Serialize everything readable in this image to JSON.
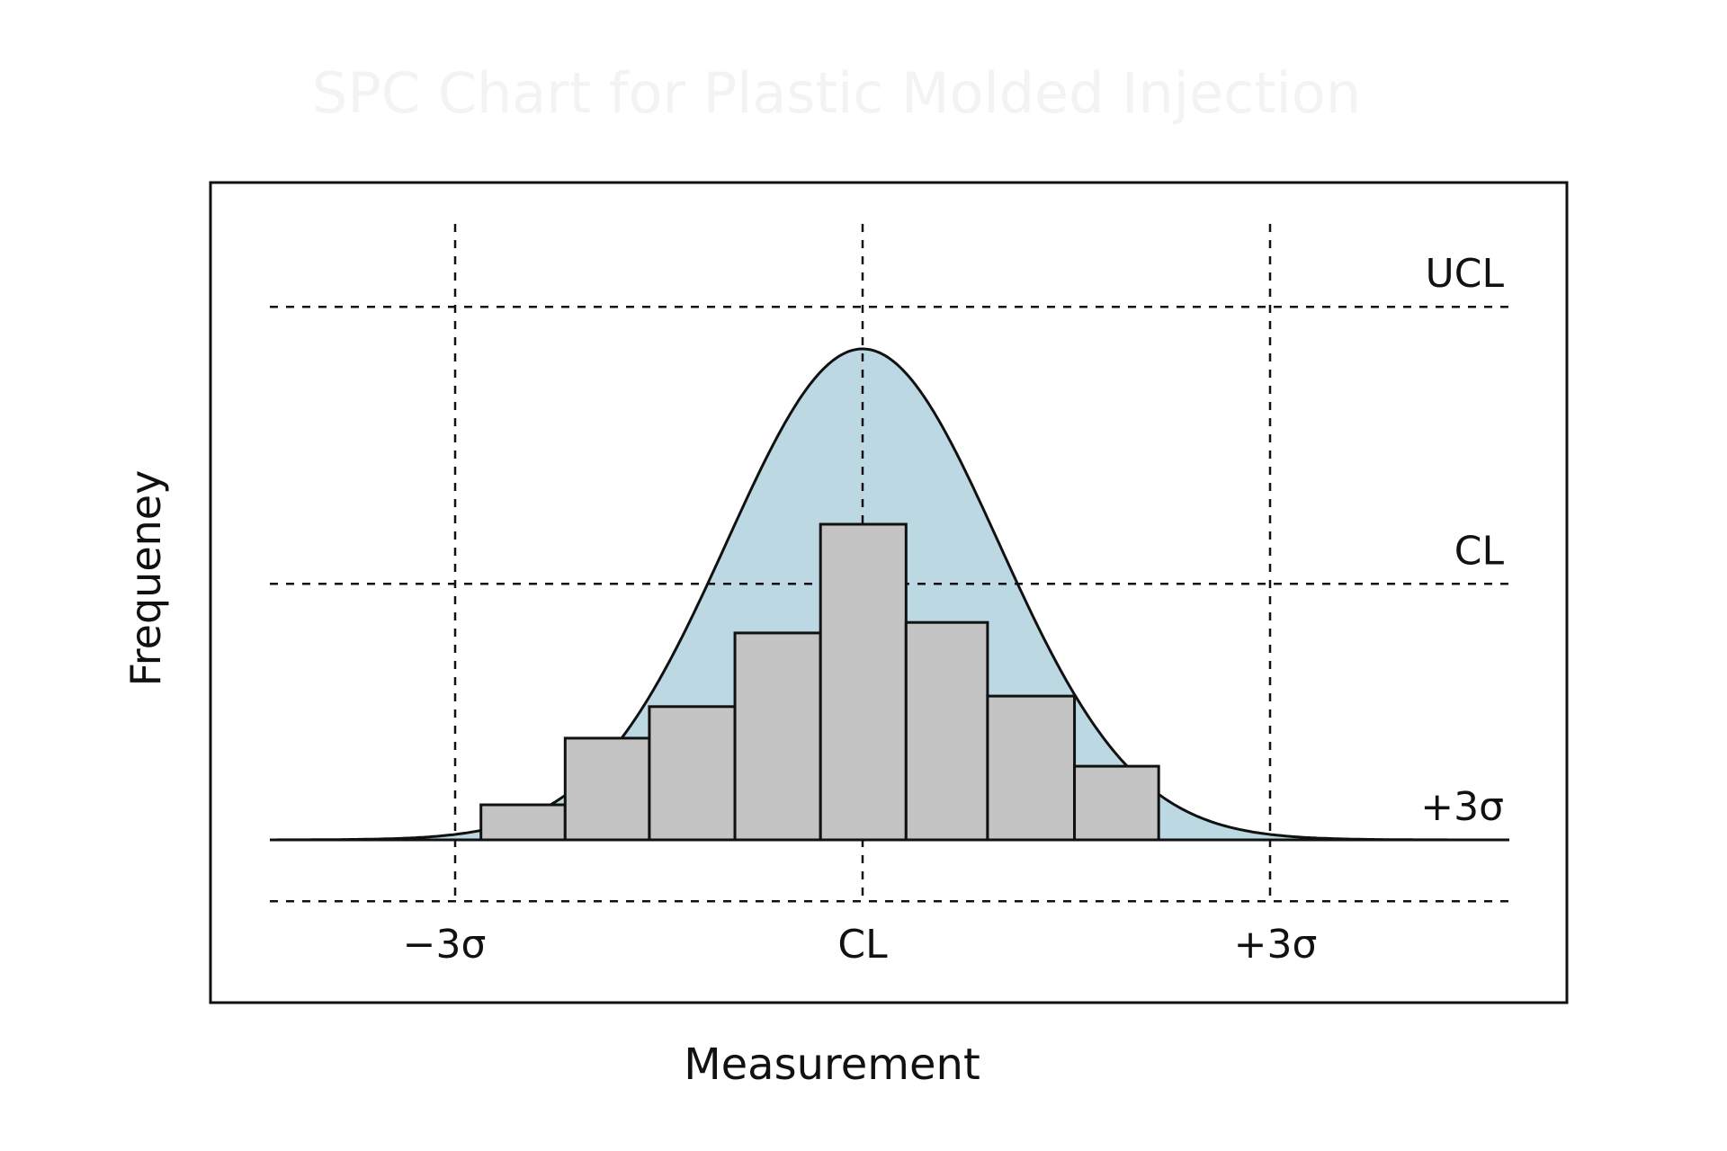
{
  "chart_data": {
    "type": "bar",
    "title": "SPC Chart for Plastic Molded Injection",
    "xlabel": "Measurement",
    "ylabel": "Frequeney",
    "x_units": "sigma",
    "xlim": [
      -4.2,
      4.8
    ],
    "ylim": [
      -1.8,
      17.5
    ],
    "x_ticks": [
      {
        "value": -3,
        "label": "−3σ"
      },
      {
        "value": 0,
        "label": "CL"
      },
      {
        "value": 3,
        "label": "+3σ"
      }
    ],
    "h_lines": [
      {
        "value": 15.2,
        "label": "UCL"
      },
      {
        "value": 7.3,
        "label": "CL"
      },
      {
        "value": 0,
        "label": "+3σ"
      },
      {
        "value": -1.75,
        "label": ""
      }
    ],
    "bin_edges": [
      -2.81,
      -2.19,
      -1.57,
      -0.94,
      -0.31,
      0.32,
      0.92,
      1.56,
      2.18
    ],
    "values": [
      1,
      2.9,
      3.8,
      5.9,
      9,
      6.2,
      4.1,
      2.1
    ],
    "normal_curve": {
      "mean": 0,
      "sigma": 1,
      "peak": 14
    },
    "colors": {
      "bar": "#c4c4c4",
      "curve_fill": "#bcd8e3",
      "line": "#111111"
    }
  }
}
